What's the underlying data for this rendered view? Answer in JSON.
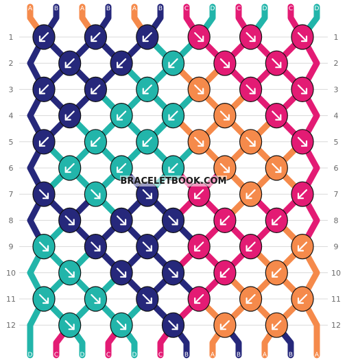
{
  "watermark": "BRACELETBOOK.COM",
  "rows": [
    "1",
    "2",
    "3",
    "4",
    "5",
    "6",
    "7",
    "8",
    "9",
    "10",
    "11",
    "12"
  ],
  "colors": {
    "A": "#f58a4b",
    "B": "#26287b",
    "C": "#e31b74",
    "D": "#22b5aa"
  },
  "top_strands": [
    "A",
    "B",
    "A",
    "B",
    "A",
    "B",
    "C",
    "D",
    "C",
    "D",
    "C",
    "D"
  ],
  "bottom_strands": [
    "D",
    "C",
    "D",
    "C",
    "D",
    "C",
    "B",
    "A",
    "B",
    "A",
    "B",
    "A"
  ],
  "knots": [
    [
      {
        "c": "B",
        "d": "bl"
      },
      {
        "c": "B",
        "d": "bl"
      },
      {
        "c": "B",
        "d": "bl"
      },
      {
        "c": "C",
        "d": "br"
      },
      {
        "c": "C",
        "d": "br"
      },
      {
        "c": "C",
        "d": "br"
      }
    ],
    [
      {
        "c": "B",
        "d": "bl"
      },
      {
        "c": "B",
        "d": "bl"
      },
      {
        "c": "D",
        "d": "bl"
      },
      {
        "c": "C",
        "d": "br"
      },
      {
        "c": "C",
        "d": "br"
      }
    ],
    [
      {
        "c": "B",
        "d": "bl"
      },
      {
        "c": "B",
        "d": "bl"
      },
      {
        "c": "D",
        "d": "bl"
      },
      {
        "c": "A",
        "d": "br"
      },
      {
        "c": "C",
        "d": "br"
      },
      {
        "c": "C",
        "d": "br"
      }
    ],
    [
      {
        "c": "B",
        "d": "bl"
      },
      {
        "c": "D",
        "d": "bl"
      },
      {
        "c": "D",
        "d": "bl"
      },
      {
        "c": "A",
        "d": "br"
      },
      {
        "c": "C",
        "d": "br"
      }
    ],
    [
      {
        "c": "B",
        "d": "bl"
      },
      {
        "c": "D",
        "d": "bl"
      },
      {
        "c": "D",
        "d": "bl"
      },
      {
        "c": "A",
        "d": "br"
      },
      {
        "c": "A",
        "d": "br"
      },
      {
        "c": "C",
        "d": "br"
      }
    ],
    [
      {
        "c": "D",
        "d": "bl"
      },
      {
        "c": "D",
        "d": "bl"
      },
      {
        "c": "D",
        "d": "bl"
      },
      {
        "c": "A",
        "d": "br"
      },
      {
        "c": "A",
        "d": "br"
      }
    ],
    [
      {
        "c": "B",
        "d": "br"
      },
      {
        "c": "D",
        "d": "br"
      },
      {
        "c": "B",
        "d": "br"
      },
      {
        "c": "C",
        "d": "bl"
      },
      {
        "c": "A",
        "d": "bl"
      },
      {
        "c": "C",
        "d": "bl"
      }
    ],
    [
      {
        "c": "B",
        "d": "br"
      },
      {
        "c": "B",
        "d": "br"
      },
      {
        "c": "B",
        "d": "br"
      },
      {
        "c": "C",
        "d": "bl"
      },
      {
        "c": "C",
        "d": "bl"
      }
    ],
    [
      {
        "c": "D",
        "d": "br"
      },
      {
        "c": "B",
        "d": "br"
      },
      {
        "c": "B",
        "d": "br"
      },
      {
        "c": "C",
        "d": "bl"
      },
      {
        "c": "C",
        "d": "bl"
      },
      {
        "c": "A",
        "d": "bl"
      }
    ],
    [
      {
        "c": "D",
        "d": "br"
      },
      {
        "c": "B",
        "d": "br"
      },
      {
        "c": "B",
        "d": "br"
      },
      {
        "c": "C",
        "d": "bl"
      },
      {
        "c": "A",
        "d": "bl"
      }
    ],
    [
      {
        "c": "D",
        "d": "br"
      },
      {
        "c": "D",
        "d": "br"
      },
      {
        "c": "B",
        "d": "br"
      },
      {
        "c": "C",
        "d": "bl"
      },
      {
        "c": "A",
        "d": "bl"
      },
      {
        "c": "A",
        "d": "bl"
      }
    ],
    [
      {
        "c": "D",
        "d": "br"
      },
      {
        "c": "D",
        "d": "br"
      },
      {
        "c": "B",
        "d": "br"
      },
      {
        "c": "A",
        "d": "bl"
      },
      {
        "c": "A",
        "d": "bl"
      }
    ]
  ]
}
